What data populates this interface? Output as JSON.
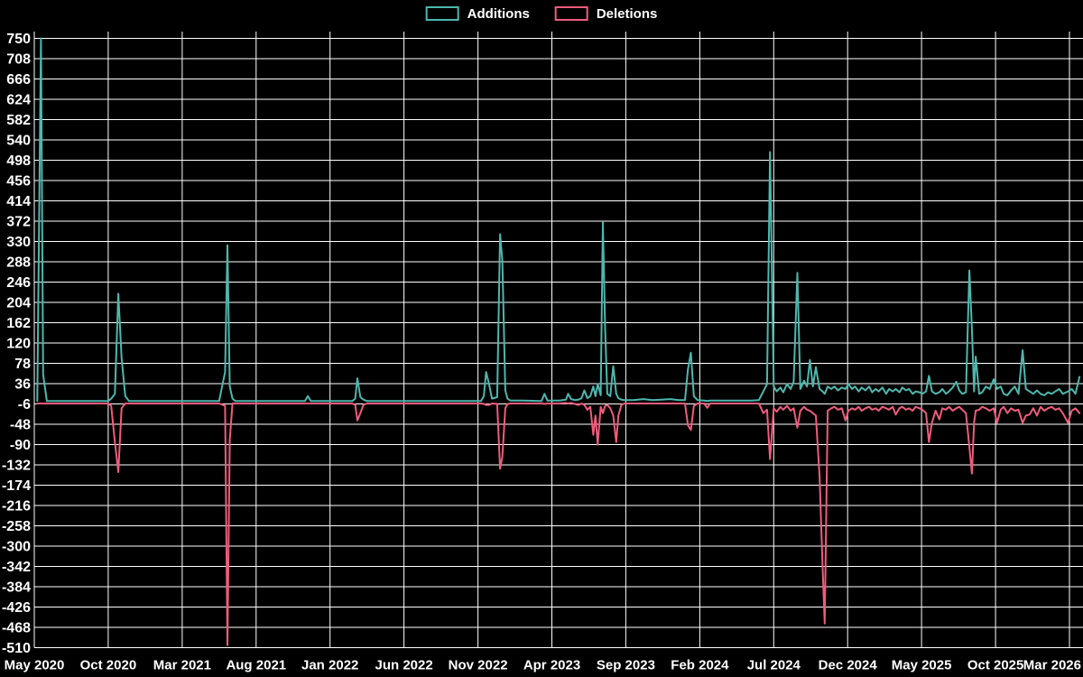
{
  "chart_data": {
    "type": "line",
    "title": "",
    "background_color": "#000000",
    "grid_color": "#ffffff",
    "text_color": "#ffffff",
    "legend_position": "top-center",
    "y_axis": {
      "max": 750,
      "min": -510,
      "step": 42,
      "tick_labels": [
        "750",
        "708",
        "666",
        "624",
        "582",
        "540",
        "498",
        "456",
        "414",
        "372",
        "330",
        "288",
        "246",
        "204",
        "162",
        "120",
        "78",
        "36",
        "-6",
        "-48",
        "-90",
        "-132",
        "-174",
        "-216",
        "-258",
        "-300",
        "-342",
        "-384",
        "-426",
        "-468",
        "-510"
      ]
    },
    "x_axis": {
      "tick_labels": [
        "May 2020",
        "Oct 2020",
        "Mar 2021",
        "Aug 2021",
        "Jan 2022",
        "Jun 2022",
        "Nov 2022",
        "Apr 2023",
        "Sep 2023",
        "Feb 2024",
        "Jul 2024",
        "Dec 2024",
        "May 2025",
        "Oct 2025",
        "Mar 2026"
      ],
      "months_between_ticks": 5
    },
    "series": [
      {
        "name": "Additions",
        "color": "#4db8ae"
      },
      {
        "name": "Deletions",
        "color": "#f05c7d"
      }
    ],
    "points_format": [
      "months_since_first_tick",
      "additions",
      "deletions"
    ],
    "points": [
      [
        0.2,
        0,
        -5
      ],
      [
        0.45,
        750,
        -5
      ],
      [
        0.6,
        55,
        -5
      ],
      [
        0.85,
        0,
        -5
      ],
      [
        2.0,
        0,
        -5
      ],
      [
        3.5,
        0,
        -5
      ],
      [
        5.0,
        0,
        -5
      ],
      [
        5.2,
        5,
        -10
      ],
      [
        5.45,
        15,
        -85
      ],
      [
        5.68,
        222,
        -147
      ],
      [
        5.9,
        90,
        -15
      ],
      [
        6.15,
        10,
        -5
      ],
      [
        6.4,
        0,
        -5
      ],
      [
        8.0,
        0,
        -5
      ],
      [
        10.0,
        0,
        -5
      ],
      [
        12.5,
        0,
        -5
      ],
      [
        12.9,
        60,
        -10
      ],
      [
        13.06,
        322,
        -505
      ],
      [
        13.22,
        30,
        -80
      ],
      [
        13.4,
        5,
        -5
      ],
      [
        13.6,
        0,
        -5
      ],
      [
        15.0,
        0,
        -5
      ],
      [
        17.0,
        0,
        -5
      ],
      [
        18.3,
        0,
        -5
      ],
      [
        18.5,
        10,
        -5
      ],
      [
        18.7,
        0,
        -5
      ],
      [
        20.0,
        0,
        -5
      ],
      [
        21.5,
        0,
        -5
      ],
      [
        21.7,
        5,
        -8
      ],
      [
        21.85,
        47,
        -40
      ],
      [
        22.05,
        8,
        -25
      ],
      [
        22.25,
        3,
        -8
      ],
      [
        22.5,
        0,
        -5
      ],
      [
        24.0,
        0,
        -5
      ],
      [
        26.0,
        0,
        -5
      ],
      [
        28.0,
        0,
        -5
      ],
      [
        30.2,
        0,
        -5
      ],
      [
        30.4,
        10,
        -6
      ],
      [
        30.55,
        60,
        -8
      ],
      [
        30.75,
        35,
        -8
      ],
      [
        30.95,
        5,
        -5
      ],
      [
        31.3,
        8,
        -6
      ],
      [
        31.5,
        345,
        -140
      ],
      [
        31.65,
        290,
        -115
      ],
      [
        31.85,
        22,
        -15
      ],
      [
        32.0,
        5,
        -6
      ],
      [
        32.2,
        1,
        -5
      ],
      [
        33.0,
        1,
        -5
      ],
      [
        34.3,
        0,
        -5
      ],
      [
        34.5,
        15,
        -6
      ],
      [
        34.7,
        1,
        -5
      ],
      [
        35.5,
        1,
        -5
      ],
      [
        35.95,
        3,
        -4
      ],
      [
        36.1,
        15,
        -5
      ],
      [
        36.3,
        4,
        -4
      ],
      [
        36.55,
        2,
        -6
      ],
      [
        36.8,
        3,
        -8
      ],
      [
        37.0,
        6,
        -5
      ],
      [
        37.2,
        22,
        -8
      ],
      [
        37.4,
        6,
        -18
      ],
      [
        37.6,
        10,
        -12
      ],
      [
        37.8,
        30,
        -70
      ],
      [
        37.95,
        10,
        -30
      ],
      [
        38.1,
        35,
        -90
      ],
      [
        38.3,
        12,
        -12
      ],
      [
        38.45,
        370,
        -25
      ],
      [
        38.6,
        150,
        -10
      ],
      [
        38.75,
        15,
        -8
      ],
      [
        38.95,
        10,
        -15
      ],
      [
        39.15,
        72,
        -30
      ],
      [
        39.35,
        15,
        -85
      ],
      [
        39.5,
        6,
        -30
      ],
      [
        39.7,
        3,
        -8
      ],
      [
        39.9,
        2,
        -5
      ],
      [
        40.5,
        2,
        -5
      ],
      [
        41.2,
        4,
        -5
      ],
      [
        41.8,
        2,
        -5
      ],
      [
        42.4,
        3,
        -5
      ],
      [
        43.0,
        4,
        -5
      ],
      [
        43.6,
        2,
        -5
      ],
      [
        44.0,
        2,
        -5
      ],
      [
        44.2,
        65,
        -50
      ],
      [
        44.4,
        100,
        -60
      ],
      [
        44.6,
        10,
        -10
      ],
      [
        44.85,
        2,
        -5
      ],
      [
        45.3,
        1,
        -5
      ],
      [
        45.5,
        0,
        -14
      ],
      [
        45.7,
        1,
        -5
      ],
      [
        46.5,
        1,
        -5
      ],
      [
        47.5,
        1,
        -5
      ],
      [
        48.5,
        1,
        -5
      ],
      [
        49.0,
        2,
        -5
      ],
      [
        49.3,
        20,
        -25
      ],
      [
        49.55,
        35,
        -18
      ],
      [
        49.75,
        515,
        -120
      ],
      [
        50.0,
        30,
        -15
      ],
      [
        50.2,
        20,
        -22
      ],
      [
        50.45,
        28,
        -12
      ],
      [
        50.65,
        18,
        -18
      ],
      [
        50.9,
        35,
        -10
      ],
      [
        51.15,
        25,
        -20
      ],
      [
        51.35,
        40,
        -15
      ],
      [
        51.6,
        265,
        -55
      ],
      [
        51.8,
        25,
        -20
      ],
      [
        52.05,
        42,
        -12
      ],
      [
        52.25,
        30,
        -18
      ],
      [
        52.45,
        85,
        -20
      ],
      [
        52.65,
        30,
        -25
      ],
      [
        52.85,
        70,
        -30
      ],
      [
        53.1,
        25,
        -155
      ],
      [
        53.3,
        20,
        -340
      ],
      [
        53.45,
        15,
        -460
      ],
      [
        53.65,
        30,
        -20
      ],
      [
        53.9,
        25,
        -15
      ],
      [
        54.1,
        30,
        -12
      ],
      [
        54.35,
        22,
        -18
      ],
      [
        54.6,
        28,
        -15
      ],
      [
        54.85,
        25,
        -40
      ],
      [
        55.05,
        35,
        -20
      ],
      [
        55.3,
        25,
        -15
      ],
      [
        55.5,
        30,
        -18
      ],
      [
        55.75,
        20,
        -12
      ],
      [
        55.95,
        28,
        -20
      ],
      [
        56.2,
        22,
        -15
      ],
      [
        56.45,
        30,
        -12
      ],
      [
        56.65,
        18,
        -18
      ],
      [
        56.9,
        25,
        -15
      ],
      [
        57.1,
        20,
        -20
      ],
      [
        57.35,
        28,
        -12
      ],
      [
        57.6,
        15,
        -15
      ],
      [
        57.8,
        25,
        -18
      ],
      [
        58.05,
        20,
        -12
      ],
      [
        58.25,
        25,
        -28
      ],
      [
        58.5,
        18,
        -15
      ],
      [
        58.7,
        28,
        -12
      ],
      [
        58.95,
        22,
        -18
      ],
      [
        59.15,
        25,
        -15
      ],
      [
        59.4,
        15,
        -20
      ],
      [
        59.6,
        20,
        -12
      ],
      [
        59.85,
        18,
        -15
      ],
      [
        60.05,
        15,
        -18
      ],
      [
        60.3,
        20,
        -25
      ],
      [
        60.5,
        52,
        -85
      ],
      [
        60.7,
        20,
        -45
      ],
      [
        60.95,
        15,
        -20
      ],
      [
        61.2,
        18,
        -38
      ],
      [
        61.4,
        25,
        -15
      ],
      [
        61.65,
        15,
        -18
      ],
      [
        61.85,
        20,
        -12
      ],
      [
        62.1,
        28,
        -20
      ],
      [
        62.35,
        40,
        -15
      ],
      [
        62.55,
        22,
        -12
      ],
      [
        62.75,
        15,
        -18
      ],
      [
        63.0,
        18,
        -25
      ],
      [
        63.23,
        270,
        -95
      ],
      [
        63.4,
        150,
        -150
      ],
      [
        63.55,
        20,
        -45
      ],
      [
        63.66,
        92,
        -20
      ],
      [
        63.9,
        15,
        -18
      ],
      [
        64.1,
        18,
        -12
      ],
      [
        64.35,
        30,
        -15
      ],
      [
        64.6,
        25,
        -20
      ],
      [
        64.88,
        45,
        -15
      ],
      [
        65.1,
        25,
        -45
      ],
      [
        65.35,
        30,
        -18
      ],
      [
        65.55,
        15,
        -12
      ],
      [
        65.8,
        12,
        -25
      ],
      [
        66.05,
        22,
        -15
      ],
      [
        66.3,
        30,
        -20
      ],
      [
        66.55,
        15,
        -18
      ],
      [
        66.83,
        105,
        -45
      ],
      [
        67.05,
        25,
        -30
      ],
      [
        67.3,
        20,
        -28
      ],
      [
        67.55,
        15,
        -15
      ],
      [
        67.8,
        22,
        -30
      ],
      [
        68.05,
        15,
        -12
      ],
      [
        68.3,
        12,
        -20
      ],
      [
        68.55,
        18,
        -15
      ],
      [
        68.8,
        15,
        -12
      ],
      [
        69.05,
        20,
        -18
      ],
      [
        69.3,
        25,
        -15
      ],
      [
        69.55,
        15,
        -25
      ],
      [
        69.9,
        20,
        -45
      ],
      [
        70.15,
        25,
        -20
      ],
      [
        70.4,
        15,
        -15
      ],
      [
        70.68,
        50,
        -25
      ]
    ]
  }
}
